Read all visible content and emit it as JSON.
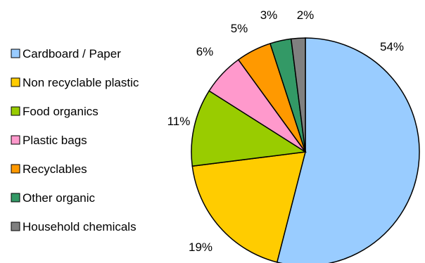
{
  "chart_data": {
    "type": "pie",
    "title": "",
    "legend_position": "left",
    "slices": [
      {
        "label": "Cardboard / Paper",
        "value": 54,
        "value_label": "54%",
        "color": "#99ccff"
      },
      {
        "label": "Non recyclable plastic",
        "value": 19,
        "value_label": "19%",
        "color": "#ffcc00"
      },
      {
        "label": "Food organics",
        "value": 11,
        "value_label": "11%",
        "color": "#99cc00"
      },
      {
        "label": "Plastic bags",
        "value": 6,
        "value_label": "6%",
        "color": "#ff99cc"
      },
      {
        "label": "Recyclables",
        "value": 5,
        "value_label": "5%",
        "color": "#ff9900"
      },
      {
        "label": "Other organic",
        "value": 3,
        "value_label": "3%",
        "color": "#339966"
      },
      {
        "label": "Household chemicals",
        "value": 2,
        "value_label": "2%",
        "color": "#808080"
      }
    ]
  }
}
